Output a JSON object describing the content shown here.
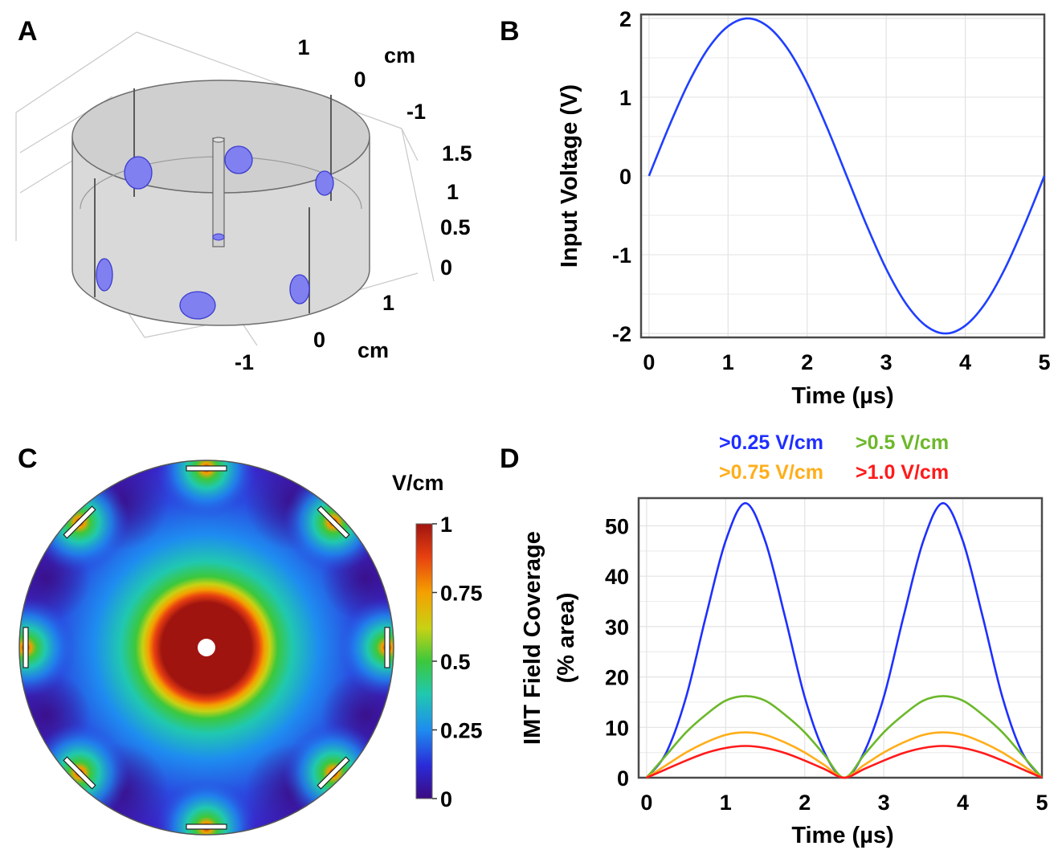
{
  "panels": [
    {
      "letter": "A"
    },
    {
      "letter": "B"
    },
    {
      "letter": "C"
    },
    {
      "letter": "D"
    }
  ],
  "panel_a": {
    "top_ticks": [
      "1",
      "0",
      "-1"
    ],
    "top_unit": "cm",
    "z_ticks": [
      "1.5",
      "1",
      "0.5",
      "0"
    ],
    "bottom_ticks": [
      "1",
      "0",
      "-1"
    ],
    "bottom_unit": "cm",
    "electrode_color": "#8080f0"
  },
  "panel_c": {
    "colorbar_unit": "V/cm",
    "colorbar_ticks": [
      "1",
      "0.75",
      "0.5",
      "0.25",
      "0"
    ],
    "colorbar_values": [
      1,
      0.75,
      0.5,
      0.25,
      0
    ],
    "colormap": [
      "#3b0a80",
      "#2a2ad8",
      "#1e8cf0",
      "#20c8b0",
      "#3cc83c",
      "#c8d214",
      "#f5a000",
      "#e84010",
      "#a01410"
    ]
  },
  "chart_data": [
    {
      "type": "line",
      "panel": "B",
      "xlabel": "Time (µs)",
      "ylabel": "Input Voltage (V)",
      "xlim": [
        -0.1,
        5.0
      ],
      "ylim": [
        -2.05,
        2.05
      ],
      "xticks": [
        "0",
        "1",
        "2",
        "3",
        "4",
        "5"
      ],
      "yticks": [
        "2",
        "1",
        "0",
        "-1",
        "-2"
      ],
      "grid": true,
      "series": [
        {
          "color": "#1f3fff",
          "x": [
            0,
            0.25,
            0.5,
            0.75,
            1.0,
            1.25,
            1.5,
            1.75,
            2.0,
            2.25,
            2.5,
            2.75,
            3.0,
            3.25,
            3.5,
            3.75,
            4.0,
            4.25,
            4.5,
            4.75,
            5.0
          ],
          "y": [
            0,
            0.62,
            1.18,
            1.62,
            1.9,
            2.0,
            1.9,
            1.62,
            1.18,
            0.62,
            0,
            -0.62,
            -1.18,
            -1.62,
            -1.9,
            -2.0,
            -1.9,
            -1.62,
            -1.18,
            -0.62,
            0
          ]
        }
      ]
    },
    {
      "type": "line",
      "panel": "D",
      "xlabel": "Time (µs)",
      "ylabel": "IMT Field Coverage",
      "ylabel_line2": "(% area)",
      "xlim": [
        -0.1,
        5.0
      ],
      "ylim": [
        0,
        55.5
      ],
      "xticks": [
        "0",
        "1",
        "2",
        "3",
        "4",
        "5"
      ],
      "yticks": [
        "50",
        "40",
        "30",
        "20",
        "10",
        "0"
      ],
      "grid": true,
      "legend_placement": "top",
      "legend_rows": [
        [
          {
            "name": ">0.25 V/cm",
            "color": "#1f2fff"
          },
          {
            "name": ">0.5 V/cm",
            "color": "#6cb82a"
          }
        ],
        [
          {
            "name": ">0.75 V/cm",
            "color": "#ffae1a"
          },
          {
            "name": ">1.0 V/cm",
            "color": "#ff1a1a"
          }
        ]
      ],
      "series": [
        {
          "name": ">0.25 V/cm",
          "color": "#1f2fff",
          "x": [
            0,
            0.25,
            0.5,
            0.75,
            1.0,
            1.25,
            1.5,
            1.75,
            2.0,
            2.25,
            2.5,
            2.75,
            3.0,
            3.25,
            3.5,
            3.75,
            4.0,
            4.25,
            4.5,
            4.75,
            5.0
          ],
          "y": [
            0,
            5,
            16,
            32,
            47,
            54.5,
            47,
            32,
            16,
            5,
            0,
            5,
            16,
            32,
            47,
            54.5,
            47,
            32,
            16,
            5,
            0
          ]
        },
        {
          "name": ">0.5 V/cm",
          "color": "#6cb82a",
          "x": [
            0,
            0.25,
            0.5,
            0.75,
            1.0,
            1.25,
            1.5,
            1.75,
            2.0,
            2.25,
            2.5,
            2.75,
            3.0,
            3.25,
            3.5,
            3.75,
            4.0,
            4.25,
            4.5,
            4.75,
            5.0
          ],
          "y": [
            0,
            4.5,
            9,
            12.5,
            15.3,
            16.2,
            15.3,
            12.5,
            9,
            4.5,
            0,
            4.5,
            9,
            12.5,
            15.3,
            16.2,
            15.3,
            12.5,
            9,
            4.5,
            0
          ]
        },
        {
          "name": ">0.75 V/cm",
          "color": "#ffae1a",
          "x": [
            0,
            0.25,
            0.5,
            0.75,
            1.0,
            1.25,
            1.5,
            1.75,
            2.0,
            2.25,
            2.5,
            2.75,
            3.0,
            3.25,
            3.5,
            3.75,
            4.0,
            4.25,
            4.5,
            4.75,
            5.0
          ],
          "y": [
            0,
            2.5,
            5,
            7,
            8.5,
            9,
            8.5,
            7,
            5,
            2.5,
            0,
            2.5,
            5,
            7,
            8.5,
            9,
            8.5,
            7,
            5,
            2.5,
            0
          ]
        },
        {
          "name": ">1.0 V/cm",
          "color": "#ff1a1a",
          "x": [
            0,
            0.25,
            0.5,
            0.75,
            1.0,
            1.25,
            1.5,
            1.75,
            2.0,
            2.25,
            2.5,
            2.75,
            3.0,
            3.25,
            3.5,
            3.75,
            4.0,
            4.25,
            4.5,
            4.75,
            5.0
          ],
          "y": [
            0,
            1.7,
            3.4,
            4.9,
            5.9,
            6.3,
            5.9,
            4.9,
            3.4,
            1.7,
            0,
            1.7,
            3.4,
            4.9,
            5.9,
            6.3,
            5.9,
            4.9,
            3.4,
            1.7,
            0
          ]
        }
      ]
    }
  ]
}
